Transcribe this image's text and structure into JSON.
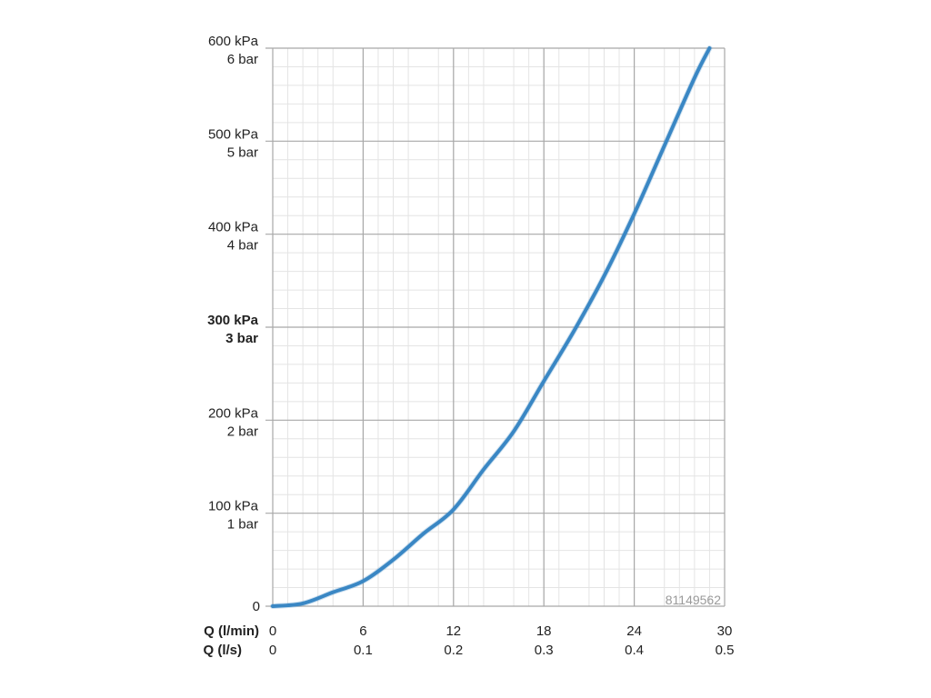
{
  "chart_data": {
    "type": "line",
    "x_axis": {
      "label_primary": "Q (l/min)",
      "label_secondary": "Q (l/s)",
      "range": [
        0,
        30
      ],
      "ticks_primary": [
        "0",
        "6",
        "12",
        "18",
        "24",
        "30"
      ],
      "ticks_secondary": [
        "0",
        "0.1",
        "0.2",
        "0.3",
        "0.4",
        "0.5"
      ]
    },
    "y_axis": {
      "range": [
        0,
        600
      ],
      "ticks": [
        {
          "value": 0,
          "line1": "0",
          "line2": "",
          "bold": false
        },
        {
          "value": 100,
          "line1": "100 kPa",
          "line2": "1 bar",
          "bold": false
        },
        {
          "value": 200,
          "line1": "200 kPa",
          "line2": "2 bar",
          "bold": false
        },
        {
          "value": 300,
          "line1": "300 kPa",
          "line2": "3 bar",
          "bold": true
        },
        {
          "value": 400,
          "line1": "400 kPa",
          "line2": "4 bar",
          "bold": false
        },
        {
          "value": 500,
          "line1": "500 kPa",
          "line2": "5 bar",
          "bold": false
        },
        {
          "value": 600,
          "line1": "600 kPa",
          "line2": "6 bar",
          "bold": false
        }
      ]
    },
    "series": [
      {
        "color": "#3a87c4",
        "x": [
          0,
          2,
          4,
          6,
          8,
          10,
          12,
          14,
          16,
          18,
          20,
          22,
          24,
          26,
          28,
          29
        ],
        "y": [
          0,
          3,
          15,
          27,
          50,
          78,
          104,
          147,
          188,
          242,
          296,
          355,
          422,
          495,
          568,
          600
        ]
      }
    ],
    "grid": true,
    "watermark": "81149562"
  }
}
